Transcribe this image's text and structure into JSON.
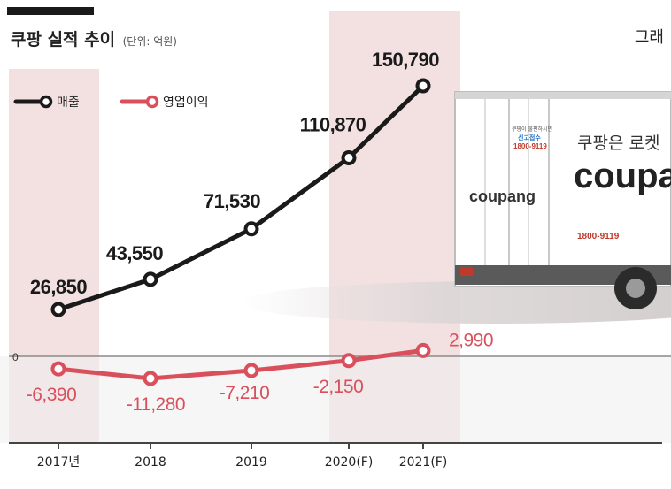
{
  "header": {
    "title": "쿠팡 실적 추이",
    "unit": "(단위: 억원)",
    "graphic_label": "그래"
  },
  "colors": {
    "revenue": "#1a1a1a",
    "operating_profit": "#d9505c",
    "highlight": "#f3e1e2",
    "baseline": "#8a8a8a"
  },
  "truck": {
    "panel_text": "쿠팡은 로켓",
    "brand_big": "coupang",
    "brand_small": "coupang",
    "phone": "1800-9119",
    "small_note": "쿠팡이 불편하시면",
    "report": "신고접수"
  },
  "chart_data": {
    "type": "line",
    "categories": [
      "2017년",
      "2018",
      "2019",
      "2020(F)",
      "2021(F)"
    ],
    "highlighted_categories": [
      "2017년",
      "2020(F)",
      "2021(F)"
    ],
    "series": [
      {
        "name": "매출",
        "values": [
          26850,
          43550,
          71530,
          110870,
          150790
        ],
        "labels": [
          "26,850",
          "43,550",
          "71,530",
          "110,870",
          "150,790"
        ],
        "color": "#1a1a1a"
      },
      {
        "name": "영업이익",
        "values": [
          -6390,
          -11280,
          -7210,
          -2150,
          2990
        ],
        "labels": [
          "-6,390",
          "-11,280",
          "-7,210",
          "-2,150",
          "2,990"
        ],
        "color": "#d9505c"
      }
    ],
    "zero_label": "0",
    "legend": "top-left"
  }
}
